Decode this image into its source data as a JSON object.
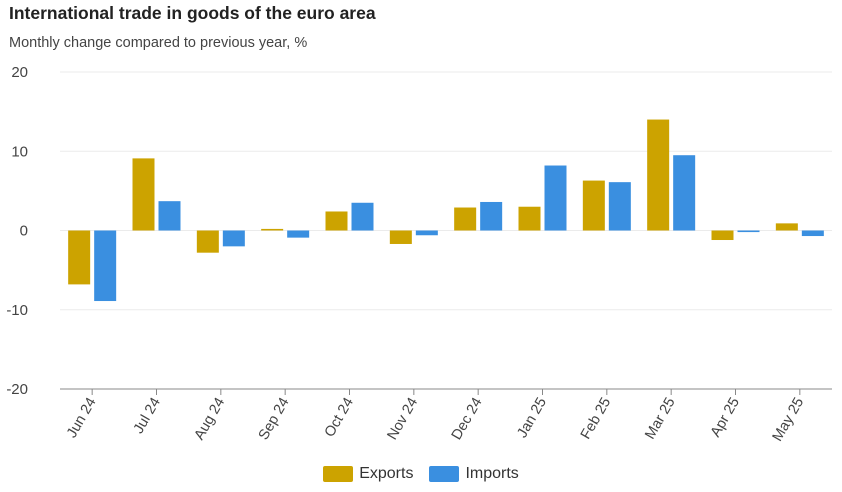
{
  "chart_data": {
    "type": "bar",
    "title": "International trade in goods of the euro area",
    "subtitle": "Monthly change compared to previous year, %",
    "categories": [
      "Jun 24",
      "Jul 24",
      "Aug 24",
      "Sep 24",
      "Oct 24",
      "Nov 24",
      "Dec 24",
      "Jan 25",
      "Feb 25",
      "Mar 25",
      "Apr 25",
      "May 25"
    ],
    "series": [
      {
        "name": "Exports",
        "color": "#cca300",
        "values": [
          -6.8,
          9.1,
          -2.8,
          0.2,
          2.4,
          -1.7,
          2.9,
          3.0,
          6.3,
          14.0,
          -1.2,
          0.9
        ]
      },
      {
        "name": "Imports",
        "color": "#3a8fe0",
        "values": [
          -8.9,
          3.7,
          -2.0,
          -0.9,
          3.5,
          -0.6,
          3.6,
          8.2,
          6.1,
          9.5,
          -0.2,
          -0.7
        ]
      }
    ],
    "ylim": [
      -20,
      20
    ],
    "yticks": [
      -20,
      -10,
      0,
      10,
      20
    ],
    "grid": true,
    "legend_position": "bottom"
  }
}
